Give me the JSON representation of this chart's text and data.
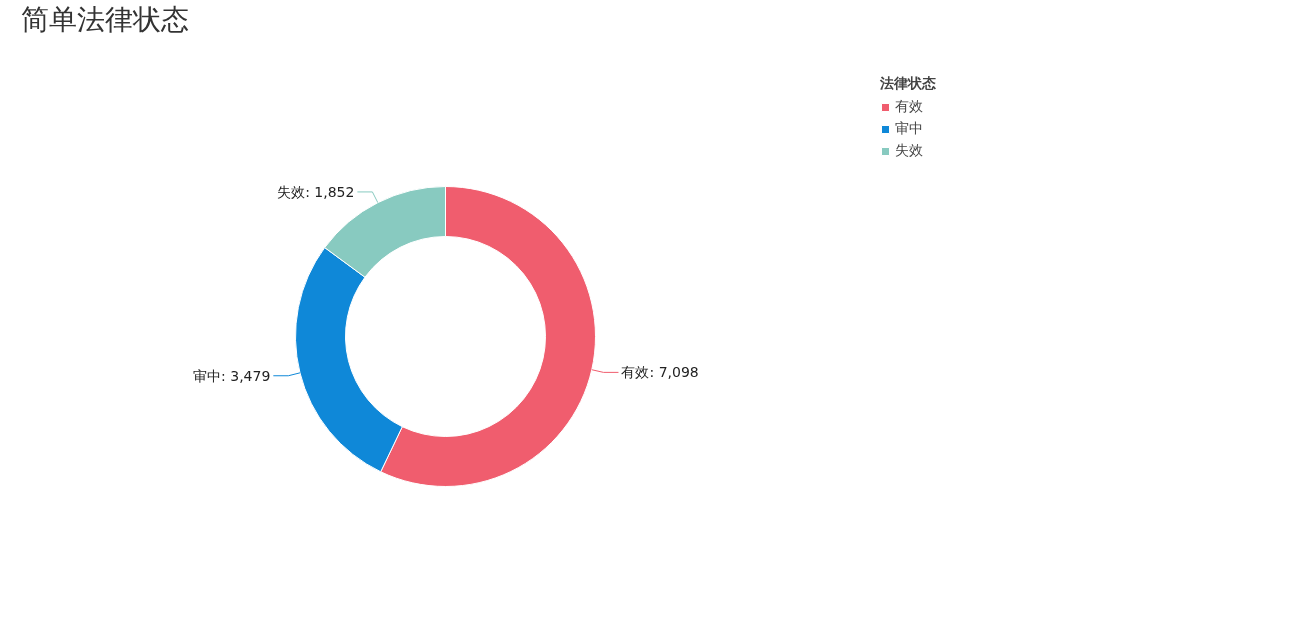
{
  "chart_data": {
    "type": "donut",
    "title": "简单法律状态",
    "legend_title": "法律状态",
    "legend": "top right",
    "categories": [
      "有效",
      "审中",
      "失效"
    ],
    "values": [
      7098,
      3479,
      1852
    ],
    "colors": [
      "#f05d6e",
      "#0f88d8",
      "#88cac0"
    ],
    "value_labels": [
      "有效: 7,098",
      "审中: 3,479",
      "失效: 1,852"
    ]
  }
}
